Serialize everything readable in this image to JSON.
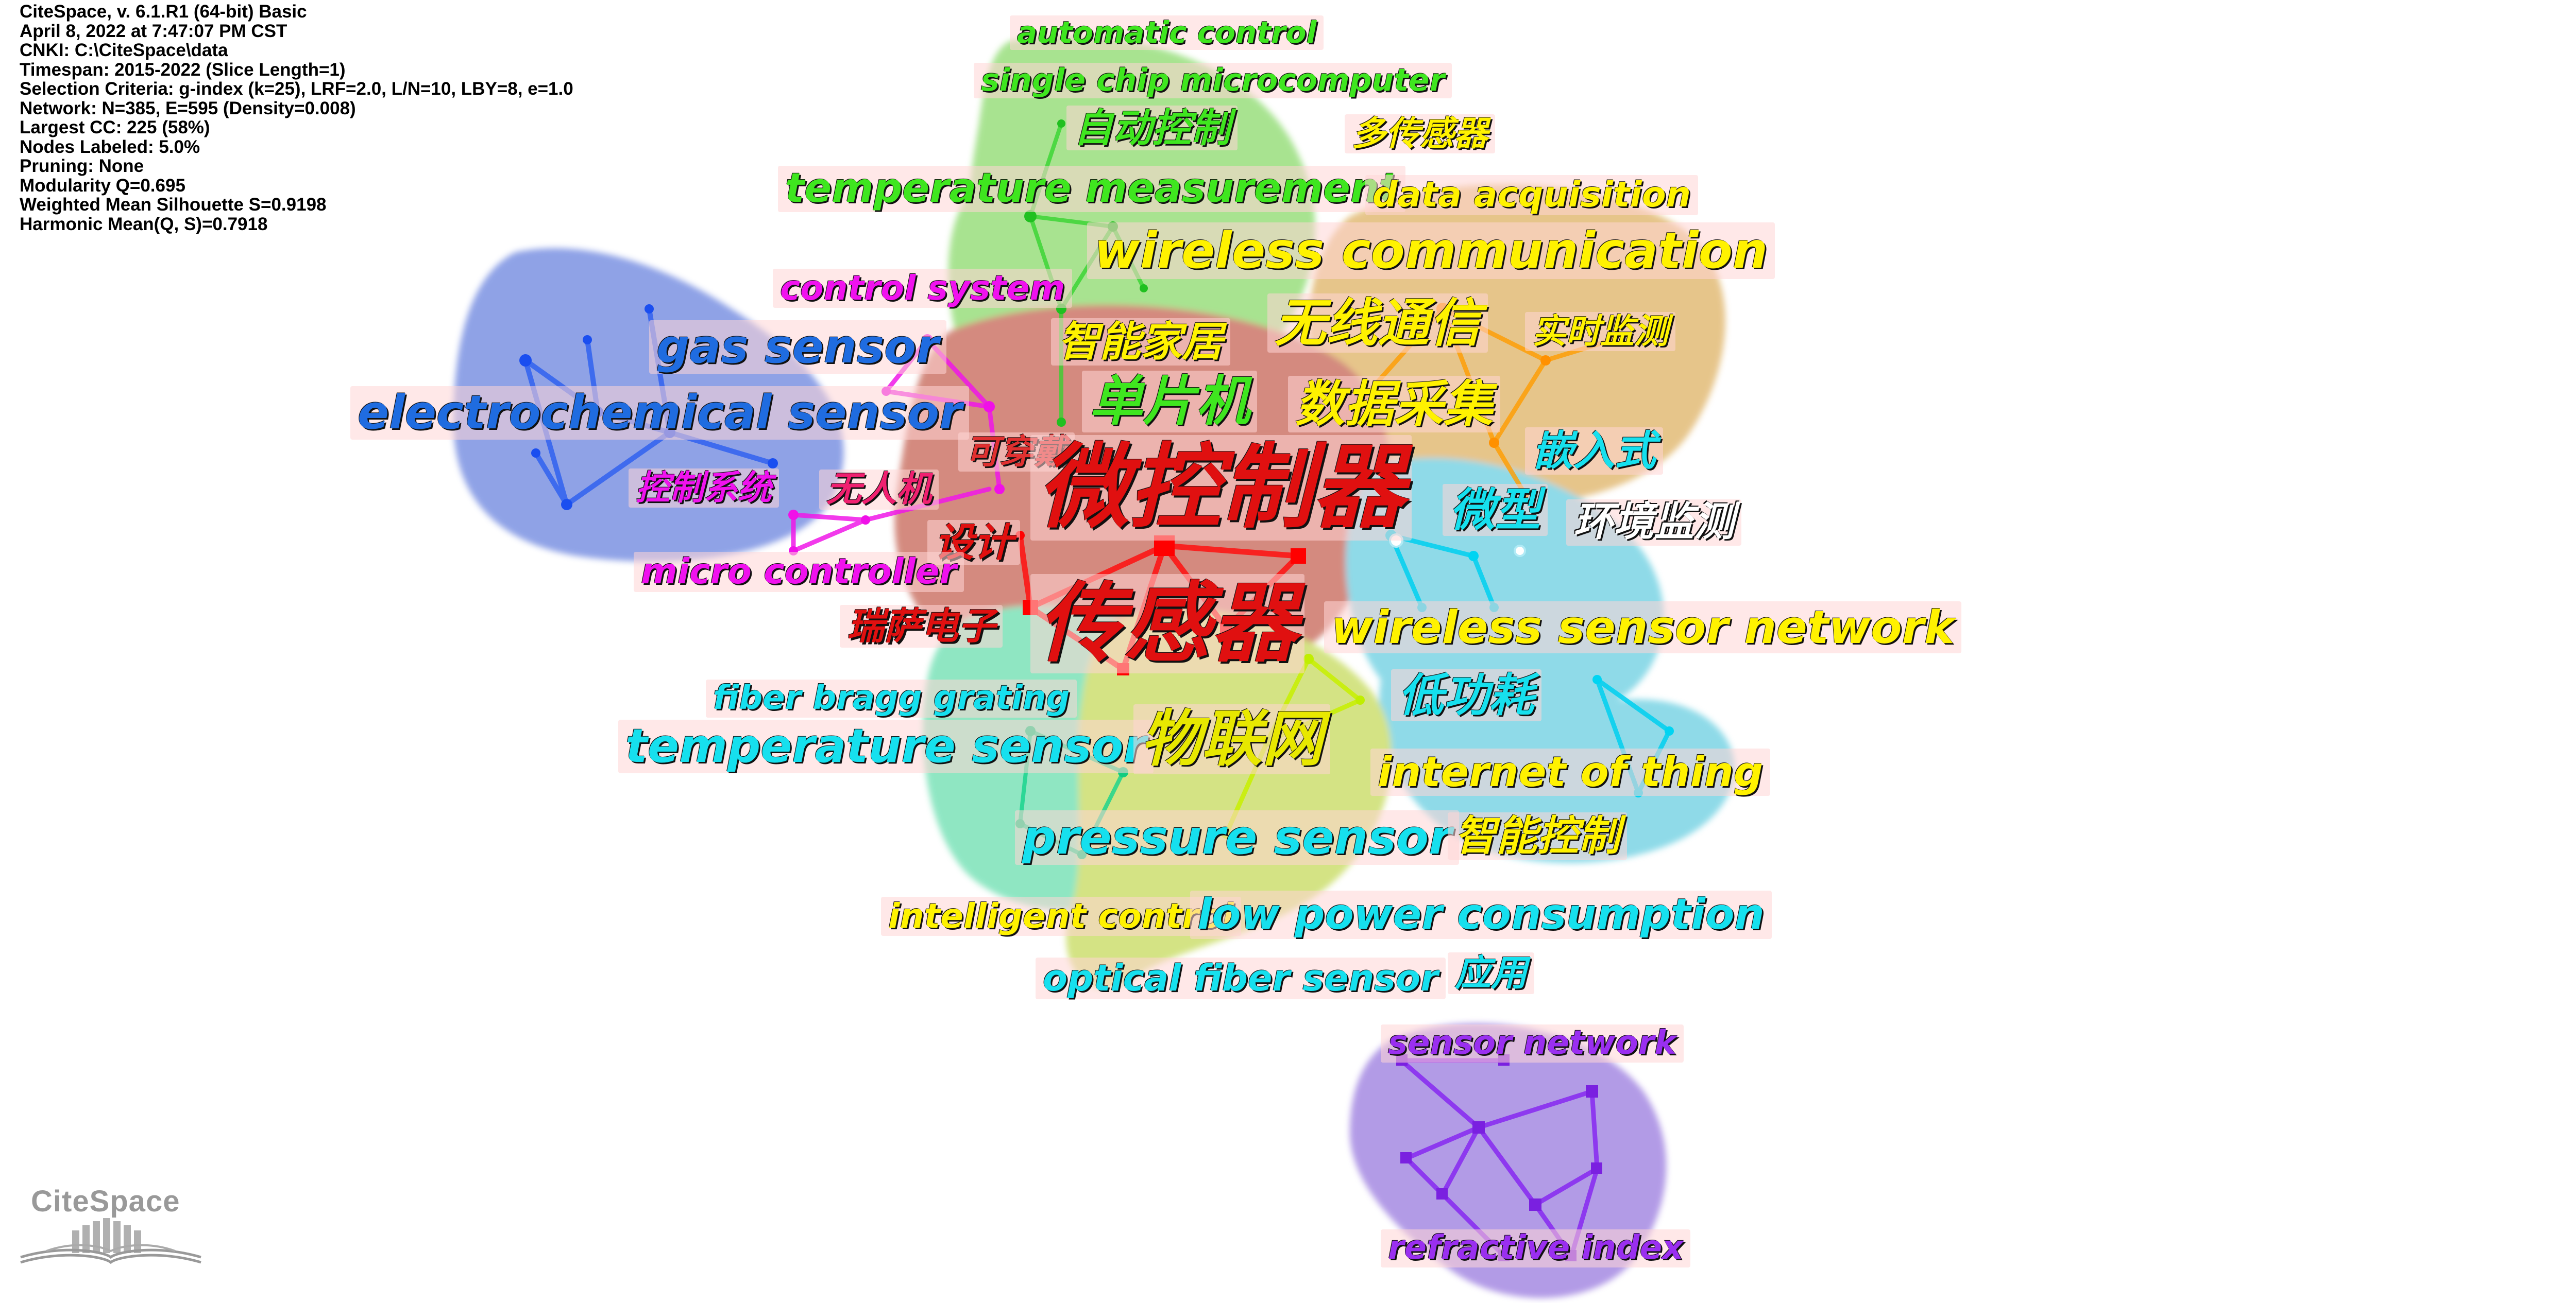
{
  "info": [
    "CiteSpace, v. 6.1.R1 (64-bit) Basic",
    "April 8, 2022 at 7:47:07 PM CST",
    "CNKI: C:\\CiteSpace\\data",
    "Timespan: 2015-2022 (Slice Length=1)",
    "Selection Criteria: g-index (k=25), LRF=2.0, L/N=10, LBY=8, e=1.0",
    "Network: N=385, E=595 (Density=0.008)",
    "Largest CC: 225 (58%)",
    "Nodes Labeled: 5.0%",
    "Pruning: None",
    "Modularity Q=0.695",
    "Weighted Mean Silhouette S=0.9198",
    "Harmonic Mean(Q, S)=0.7918"
  ],
  "labels": {
    "automatic_control": "automatic control",
    "single_chip": "single chip microcomputer",
    "zidong_kongzhi": "自动控制",
    "duo_chuanganqi": "多传感器",
    "temperature_measurement": "temperature measurement",
    "data_acquisition": "data acquisition",
    "wireless_communication": "wireless communication",
    "control_system": "control system",
    "wuxian_tongxin": "无线通信",
    "shishi_jiance": "实时监测",
    "zhineng_jiaju": "智能家居",
    "gas_sensor": "gas sensor",
    "danpianji": "单片机",
    "shuju_caiji": "数据采集",
    "electrochemical_sensor": "electrochemical sensor",
    "kechuandai": "可穿戴",
    "qianrushi": "嵌入式",
    "weikongzhiqi": "微控制器",
    "kongzhi_xitong": "控制系统",
    "wurenji": "无人机",
    "weixing": "微型",
    "huanjing_jiance": "环境监测",
    "sheji": "设计",
    "micro_controller": "micro controller",
    "chuanganqi": "传感器",
    "ruisa_dianzi": "瑞萨电子",
    "wireless_sensor_network": "wireless sensor network",
    "fiber_bragg": "fiber bragg grating",
    "digonghao": "低功耗",
    "temperature_sensor": "temperature sensor",
    "wulianwang": "物联网",
    "internet_of_thing": "internet of thing",
    "pressure_sensor": "pressure sensor",
    "zhineng_kongzhi": "智能控制",
    "intelligent_control": "intelligent control",
    "low_power": "low power consumption",
    "optical_fiber": "optical fiber sensor",
    "yingyong": "应用",
    "sensor_network": "sensor network",
    "refractive_index": "refractive index"
  },
  "logo": {
    "text": "CiteSpace"
  },
  "colors": {
    "cluster_green": "#8fdc70",
    "cluster_orange": "#e0b060",
    "cluster_blue": "#6f88e0",
    "cluster_red": "#c46a5a",
    "cluster_cyan": "#6fd0e2",
    "cluster_teal": "#6fe0b0",
    "cluster_lime": "#c8dc60",
    "cluster_violet": "#9d7ee0"
  }
}
